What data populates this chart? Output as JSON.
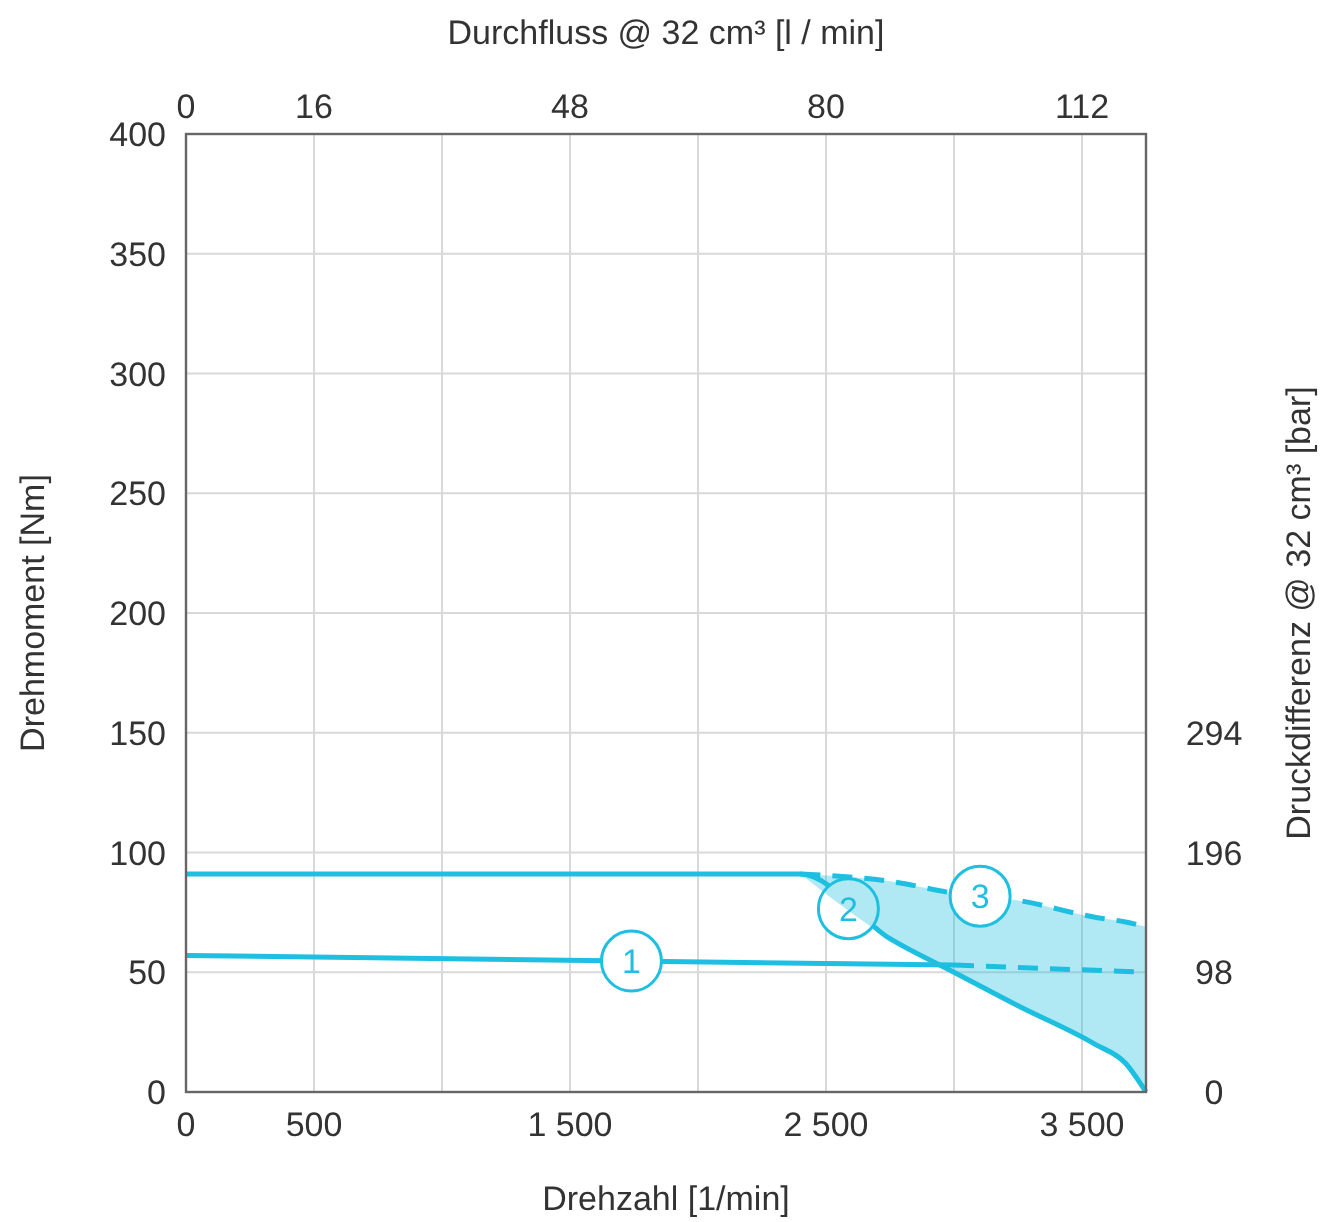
{
  "chart_data": {
    "type": "line",
    "xlabel": "Drehzahl [1/min]",
    "ylabel": "Drehmoment [Nm]",
    "x2label": "Durchfluss @ 32 cm³ [l / min]",
    "y2label": "Druckdifferenz @ 32 cm³ [bar]",
    "xlim": [
      0,
      3750
    ],
    "xticks": [
      0,
      500,
      {
        "value": 1000,
        "label": null
      },
      {
        "value": 1500,
        "label": "1 500"
      },
      {
        "value": 2000,
        "label": null
      },
      {
        "value": 2500,
        "label": "2 500"
      },
      {
        "value": 3000,
        "label": null
      },
      {
        "value": 3500,
        "label": "3 500"
      }
    ],
    "x2lim": [
      0,
      120
    ],
    "x2ticks": [
      0,
      16,
      48,
      80,
      112
    ],
    "ylim": [
      0,
      400
    ],
    "yticks": [
      0,
      50,
      100,
      150,
      200,
      250,
      300,
      350,
      400
    ],
    "y2lim": [
      0,
      784
    ],
    "y2ticks": [
      0,
      98,
      196,
      294
    ],
    "grid": true,
    "marker": "none",
    "series": [
      {
        "name": "1",
        "color": "#1ebfe0",
        "x": [
          0,
          3000
        ],
        "values": [
          57,
          53
        ],
        "line_style": "solid"
      },
      {
        "color": "#1ebfe0",
        "x": [
          3000,
          3750
        ],
        "values": [
          53,
          50
        ],
        "line_style": "dashed"
      },
      {
        "name": "2",
        "color": "#1ebfe0",
        "x": [
          0,
          2400,
          2750,
          3000,
          3250,
          3550,
          3670,
          3750
        ],
        "values": [
          91,
          91,
          64,
          50,
          36,
          20,
          12,
          0
        ],
        "line_style": "solid"
      },
      {
        "name": "3",
        "color": "#1ebfe0",
        "x": [
          2400,
          2750,
          3000,
          3250,
          3550,
          3670,
          3750
        ],
        "values": [
          91,
          88,
          83,
          80,
          73,
          71,
          69
        ],
        "line_style": "dashed",
        "lower": [
          91,
          64,
          50,
          36,
          20,
          12,
          0
        ],
        "upper": [
          91,
          88,
          83,
          80,
          73,
          71,
          69
        ]
      }
    ]
  }
}
